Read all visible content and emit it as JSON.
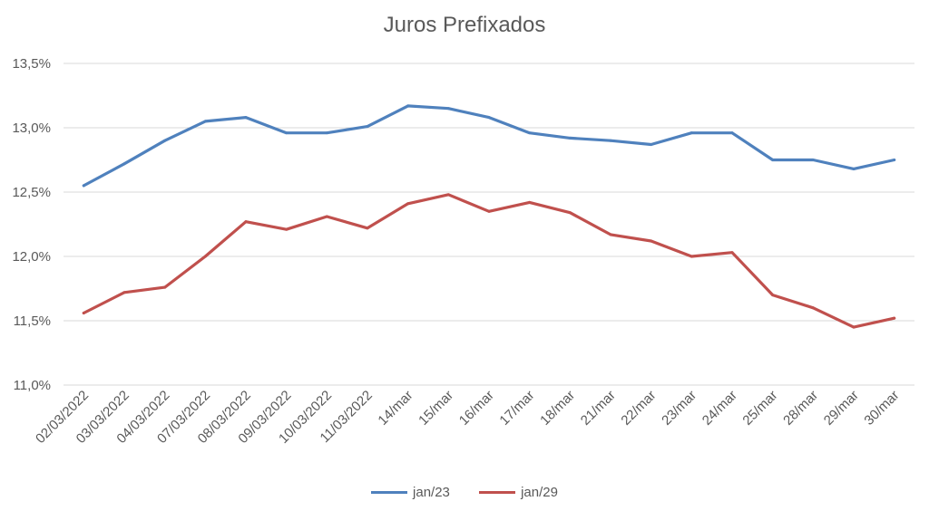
{
  "chart_data": {
    "type": "line",
    "title": "Juros Prefixados",
    "xlabel": "",
    "ylabel": "",
    "categories": [
      "02/03/2022",
      "03/03/2022",
      "04/03/2022",
      "07/03/2022",
      "08/03/2022",
      "09/03/2022",
      "10/03/2022",
      "11/03/2022",
      "14/mar",
      "15/mar",
      "16/mar",
      "17/mar",
      "18/mar",
      "21/mar",
      "22/mar",
      "23/mar",
      "24/mar",
      "25/mar",
      "28/mar",
      "29/mar",
      "30/mar"
    ],
    "yticks": [
      "11,0%",
      "11,5%",
      "12,0%",
      "12,5%",
      "13,0%",
      "13,5%"
    ],
    "ylim": [
      11.0,
      13.5
    ],
    "grid": true,
    "legend_position": "bottom",
    "series": [
      {
        "name": "jan/23",
        "color": "#4f81bd",
        "values": [
          12.55,
          12.72,
          12.9,
          13.05,
          13.08,
          12.96,
          12.96,
          13.01,
          13.17,
          13.15,
          13.08,
          12.96,
          12.92,
          12.9,
          12.87,
          12.96,
          12.96,
          12.75,
          12.75,
          12.68,
          12.75
        ]
      },
      {
        "name": "jan/29",
        "color": "#c0504d",
        "values": [
          11.56,
          11.72,
          11.76,
          12.0,
          12.27,
          12.21,
          12.31,
          12.22,
          12.41,
          12.48,
          12.35,
          12.42,
          12.34,
          12.17,
          12.12,
          12.0,
          12.03,
          11.7,
          11.6,
          11.45,
          11.52
        ]
      }
    ]
  }
}
